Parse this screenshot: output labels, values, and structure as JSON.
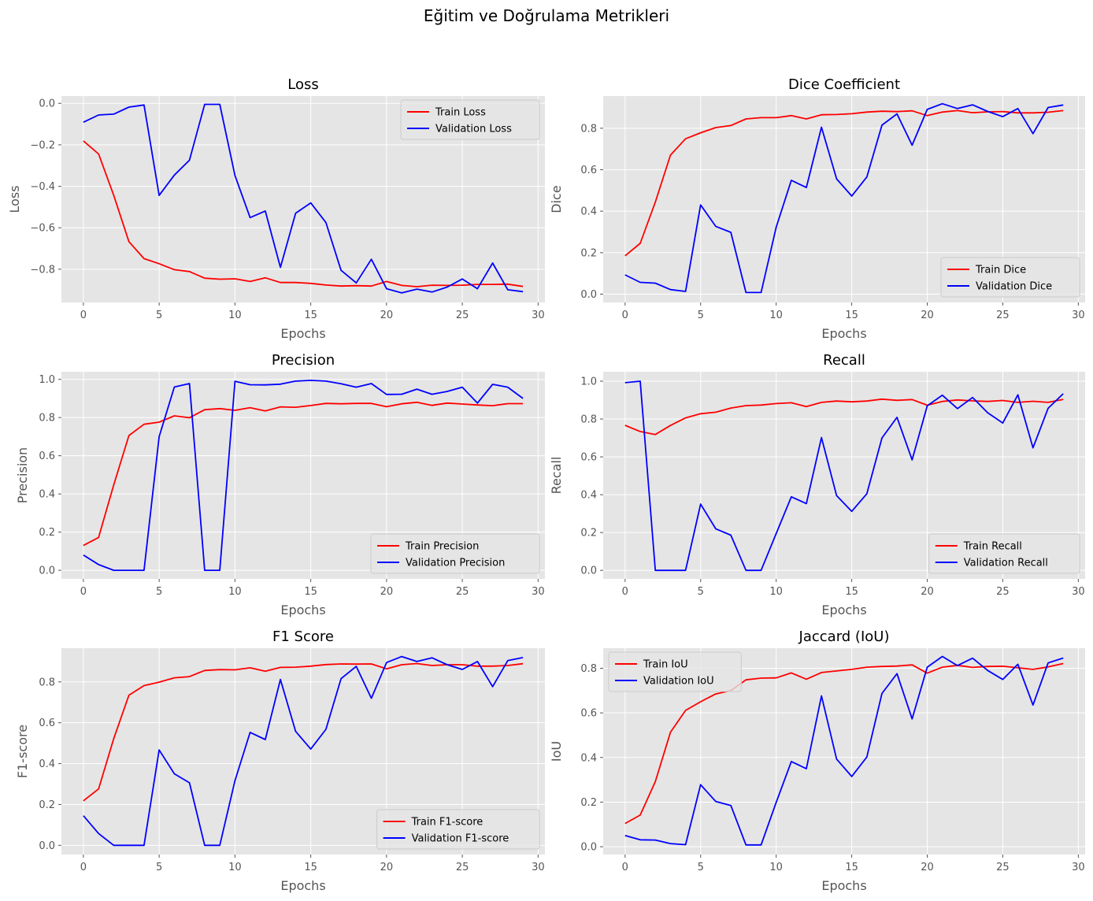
{
  "figure": {
    "suptitle": "Eğitim ve Doğrulama Metrikleri"
  },
  "chart_data": [
    {
      "type": "line",
      "title": "Loss",
      "xlabel": "Epochs",
      "ylabel": "Loss",
      "xlim": [
        -1.45,
        30.45
      ],
      "ylim": [
        -0.96,
        0.035
      ],
      "xticks": [
        0,
        5,
        10,
        15,
        20,
        25,
        30
      ],
      "xtick_labels": [
        "0",
        "5",
        "10",
        "15",
        "20",
        "25",
        "30"
      ],
      "yticks": [
        -0.8,
        -0.6,
        -0.4,
        -0.2,
        0.0
      ],
      "ytick_labels": [
        "−0.8",
        "−0.6",
        "−0.4",
        "−0.2",
        "0.0"
      ],
      "legend_loc": "upper right",
      "grid": true,
      "x": [
        0,
        1,
        2,
        3,
        4,
        5,
        6,
        7,
        8,
        9,
        10,
        11,
        12,
        13,
        14,
        15,
        16,
        17,
        18,
        19,
        20,
        21,
        22,
        23,
        24,
        25,
        26,
        27,
        28,
        29
      ],
      "series": [
        {
          "name": "Train Loss",
          "color": "#ff0000",
          "values": [
            -0.181,
            -0.244,
            -0.443,
            -0.667,
            -0.749,
            -0.773,
            -0.802,
            -0.811,
            -0.843,
            -0.848,
            -0.846,
            -0.859,
            -0.841,
            -0.864,
            -0.864,
            -0.868,
            -0.876,
            -0.881,
            -0.879,
            -0.881,
            -0.859,
            -0.878,
            -0.884,
            -0.877,
            -0.878,
            -0.877,
            -0.873,
            -0.873,
            -0.872,
            -0.883
          ]
        },
        {
          "name": "Validation Loss",
          "color": "#0000ff",
          "values": [
            -0.091,
            -0.056,
            -0.052,
            -0.018,
            -0.008,
            -0.444,
            -0.346,
            -0.274,
            -0.005,
            -0.005,
            -0.348,
            -0.551,
            -0.519,
            -0.791,
            -0.53,
            -0.48,
            -0.575,
            -0.805,
            -0.866,
            -0.752,
            -0.894,
            -0.914,
            -0.896,
            -0.91,
            -0.886,
            -0.847,
            -0.894,
            -0.77,
            -0.899,
            -0.908
          ]
        }
      ]
    },
    {
      "type": "line",
      "title": "Dice Coefficient",
      "xlabel": "Epochs",
      "ylabel": "Dice",
      "xlim": [
        -1.45,
        30.45
      ],
      "ylim": [
        -0.04,
        0.955
      ],
      "xticks": [
        0,
        5,
        10,
        15,
        20,
        25,
        30
      ],
      "xtick_labels": [
        "0",
        "5",
        "10",
        "15",
        "20",
        "25",
        "30"
      ],
      "yticks": [
        0.0,
        0.2,
        0.4,
        0.6,
        0.8
      ],
      "ytick_labels": [
        "0.0",
        "0.2",
        "0.4",
        "0.6",
        "0.8"
      ],
      "legend_loc": "lower right",
      "grid": true,
      "x": [
        0,
        1,
        2,
        3,
        4,
        5,
        6,
        7,
        8,
        9,
        10,
        11,
        12,
        13,
        14,
        15,
        16,
        17,
        18,
        19,
        20,
        21,
        22,
        23,
        24,
        25,
        26,
        27,
        28,
        29
      ],
      "series": [
        {
          "name": "Train Dice",
          "color": "#ff0000",
          "values": [
            0.185,
            0.245,
            0.444,
            0.67,
            0.749,
            0.778,
            0.803,
            0.813,
            0.845,
            0.851,
            0.851,
            0.861,
            0.845,
            0.865,
            0.866,
            0.87,
            0.878,
            0.882,
            0.88,
            0.884,
            0.861,
            0.878,
            0.885,
            0.875,
            0.879,
            0.88,
            0.874,
            0.874,
            0.877,
            0.885
          ]
        },
        {
          "name": "Validation Dice",
          "color": "#0000ff",
          "values": [
            0.093,
            0.057,
            0.053,
            0.022,
            0.013,
            0.43,
            0.327,
            0.298,
            0.008,
            0.008,
            0.323,
            0.549,
            0.514,
            0.805,
            0.556,
            0.473,
            0.565,
            0.815,
            0.869,
            0.718,
            0.891,
            0.918,
            0.895,
            0.913,
            0.881,
            0.856,
            0.895,
            0.774,
            0.9,
            0.912
          ]
        }
      ]
    },
    {
      "type": "line",
      "title": "Precision",
      "xlabel": "Epochs",
      "ylabel": "Precision",
      "xlim": [
        -1.45,
        30.45
      ],
      "ylim": [
        -0.045,
        1.04
      ],
      "xticks": [
        0,
        5,
        10,
        15,
        20,
        25,
        30
      ],
      "xtick_labels": [
        "0",
        "5",
        "10",
        "15",
        "20",
        "25",
        "30"
      ],
      "yticks": [
        0.0,
        0.2,
        0.4,
        0.6,
        0.8,
        1.0
      ],
      "ytick_labels": [
        "0.0",
        "0.2",
        "0.4",
        "0.6",
        "0.8",
        "1.0"
      ],
      "legend_loc": "lower right",
      "grid": true,
      "x": [
        0,
        1,
        2,
        3,
        4,
        5,
        6,
        7,
        8,
        9,
        10,
        11,
        12,
        13,
        14,
        15,
        16,
        17,
        18,
        19,
        20,
        21,
        22,
        23,
        24,
        25,
        26,
        27,
        28,
        29
      ],
      "series": [
        {
          "name": "Train Precision",
          "color": "#ff0000",
          "values": [
            0.13,
            0.172,
            0.447,
            0.706,
            0.765,
            0.776,
            0.809,
            0.799,
            0.841,
            0.847,
            0.838,
            0.852,
            0.835,
            0.856,
            0.854,
            0.863,
            0.874,
            0.872,
            0.874,
            0.874,
            0.857,
            0.872,
            0.88,
            0.864,
            0.876,
            0.871,
            0.866,
            0.862,
            0.873,
            0.873
          ]
        },
        {
          "name": "Validation Precision",
          "color": "#0000ff",
          "values": [
            0.08,
            0.03,
            0.0,
            0.0,
            0.0,
            0.7,
            0.96,
            0.978,
            0.0,
            0.0,
            0.99,
            0.972,
            0.971,
            0.975,
            0.991,
            0.995,
            0.991,
            0.977,
            0.959,
            0.978,
            0.921,
            0.922,
            0.949,
            0.922,
            0.937,
            0.959,
            0.876,
            0.974,
            0.959,
            0.9
          ]
        }
      ]
    },
    {
      "type": "line",
      "title": "Recall",
      "xlabel": "Epochs",
      "ylabel": "Recall",
      "xlim": [
        -1.45,
        30.45
      ],
      "ylim": [
        -0.045,
        1.05
      ],
      "xticks": [
        0,
        5,
        10,
        15,
        20,
        25,
        30
      ],
      "xtick_labels": [
        "0",
        "5",
        "10",
        "15",
        "20",
        "25",
        "30"
      ],
      "yticks": [
        0.0,
        0.2,
        0.4,
        0.6,
        0.8,
        1.0
      ],
      "ytick_labels": [
        "0.0",
        "0.2",
        "0.4",
        "0.6",
        "0.8",
        "1.0"
      ],
      "legend_loc": "lower right",
      "grid": true,
      "x": [
        0,
        1,
        2,
        3,
        4,
        5,
        6,
        7,
        8,
        9,
        10,
        11,
        12,
        13,
        14,
        15,
        16,
        17,
        18,
        19,
        20,
        21,
        22,
        23,
        24,
        25,
        26,
        27,
        28,
        29
      ],
      "series": [
        {
          "name": "Train Recall",
          "color": "#ff0000",
          "values": [
            0.767,
            0.734,
            0.718,
            0.766,
            0.806,
            0.828,
            0.836,
            0.858,
            0.871,
            0.874,
            0.882,
            0.886,
            0.866,
            0.888,
            0.895,
            0.891,
            0.895,
            0.905,
            0.899,
            0.903,
            0.873,
            0.893,
            0.901,
            0.896,
            0.893,
            0.898,
            0.888,
            0.894,
            0.888,
            0.904
          ]
        },
        {
          "name": "Validation Recall",
          "color": "#0000ff",
          "values": [
            0.992,
            1.0,
            0.0,
            0.0,
            0.0,
            0.35,
            0.22,
            0.186,
            0.0,
            0.0,
            0.195,
            0.389,
            0.353,
            0.702,
            0.395,
            0.312,
            0.405,
            0.7,
            0.809,
            0.584,
            0.87,
            0.926,
            0.855,
            0.914,
            0.833,
            0.779,
            0.928,
            0.648,
            0.857,
            0.934
          ]
        }
      ]
    },
    {
      "type": "line",
      "title": "F1 Score",
      "xlabel": "Epochs",
      "ylabel": "F1-score",
      "xlim": [
        -1.45,
        30.45
      ],
      "ylim": [
        -0.045,
        0.965
      ],
      "xticks": [
        0,
        5,
        10,
        15,
        20,
        25,
        30
      ],
      "xtick_labels": [
        "0",
        "5",
        "10",
        "15",
        "20",
        "25",
        "30"
      ],
      "yticks": [
        0.0,
        0.2,
        0.4,
        0.6,
        0.8
      ],
      "ytick_labels": [
        "0.0",
        "0.2",
        "0.4",
        "0.6",
        "0.8"
      ],
      "legend_loc": "lower right",
      "grid": true,
      "x": [
        0,
        1,
        2,
        3,
        4,
        5,
        6,
        7,
        8,
        9,
        10,
        11,
        12,
        13,
        14,
        15,
        16,
        17,
        18,
        19,
        20,
        21,
        22,
        23,
        24,
        25,
        26,
        27,
        28,
        29
      ],
      "series": [
        {
          "name": "Train F1-score",
          "color": "#ff0000",
          "values": [
            0.218,
            0.276,
            0.522,
            0.735,
            0.782,
            0.799,
            0.82,
            0.826,
            0.856,
            0.86,
            0.859,
            0.869,
            0.852,
            0.871,
            0.872,
            0.877,
            0.885,
            0.888,
            0.887,
            0.888,
            0.864,
            0.884,
            0.89,
            0.88,
            0.884,
            0.884,
            0.877,
            0.877,
            0.88,
            0.889
          ]
        },
        {
          "name": "Validation F1-score",
          "color": "#0000ff",
          "values": [
            0.145,
            0.058,
            0.0,
            0.0,
            0.0,
            0.467,
            0.35,
            0.306,
            0.0,
            0.0,
            0.317,
            0.553,
            0.518,
            0.812,
            0.558,
            0.471,
            0.568,
            0.816,
            0.876,
            0.72,
            0.895,
            0.924,
            0.9,
            0.918,
            0.884,
            0.861,
            0.9,
            0.777,
            0.904,
            0.919
          ]
        }
      ]
    },
    {
      "type": "line",
      "title": "Jaccard (IoU)",
      "xlabel": "Epochs",
      "ylabel": "IoU",
      "xlim": [
        -1.45,
        30.45
      ],
      "ylim": [
        -0.035,
        0.89
      ],
      "xticks": [
        0,
        5,
        10,
        15,
        20,
        25,
        30
      ],
      "xtick_labels": [
        "0",
        "5",
        "10",
        "15",
        "20",
        "25",
        "30"
      ],
      "yticks": [
        0.0,
        0.2,
        0.4,
        0.6,
        0.8
      ],
      "ytick_labels": [
        "0.0",
        "0.2",
        "0.4",
        "0.6",
        "0.8"
      ],
      "legend_loc": "upper left",
      "grid": true,
      "x": [
        0,
        1,
        2,
        3,
        4,
        5,
        6,
        7,
        8,
        9,
        10,
        11,
        12,
        13,
        14,
        15,
        16,
        17,
        18,
        19,
        20,
        21,
        22,
        23,
        24,
        25,
        26,
        27,
        28,
        29
      ],
      "series": [
        {
          "name": "Train IoU",
          "color": "#ff0000",
          "values": [
            0.104,
            0.142,
            0.292,
            0.513,
            0.611,
            0.65,
            0.685,
            0.7,
            0.748,
            0.756,
            0.757,
            0.779,
            0.751,
            0.781,
            0.788,
            0.795,
            0.805,
            0.808,
            0.81,
            0.815,
            0.778,
            0.805,
            0.813,
            0.804,
            0.808,
            0.809,
            0.802,
            0.795,
            0.806,
            0.821
          ]
        },
        {
          "name": "Validation IoU",
          "color": "#0000ff",
          "values": [
            0.05,
            0.031,
            0.03,
            0.014,
            0.009,
            0.278,
            0.203,
            0.185,
            0.008,
            0.008,
            0.199,
            0.382,
            0.35,
            0.676,
            0.393,
            0.315,
            0.402,
            0.687,
            0.776,
            0.573,
            0.805,
            0.853,
            0.812,
            0.845,
            0.79,
            0.75,
            0.818,
            0.635,
            0.824,
            0.846
          ]
        }
      ]
    }
  ]
}
